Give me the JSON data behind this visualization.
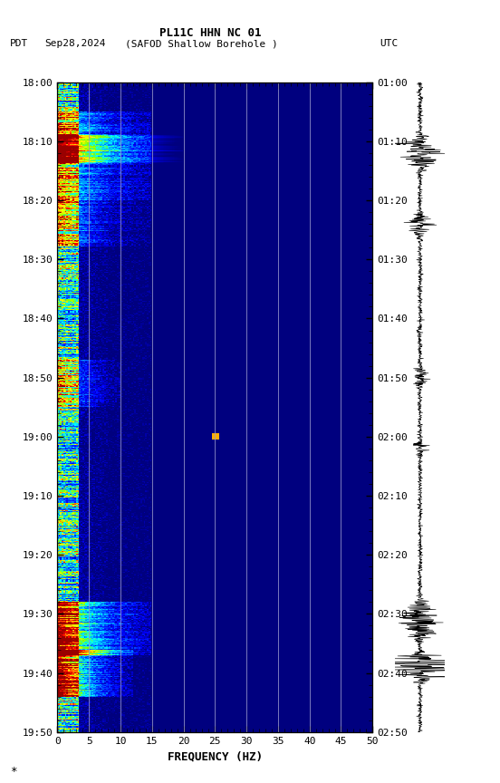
{
  "title_line1": "PL11C HHN NC 01",
  "title_line2_left": "PDT   Sep28,2024      (SAFOD Shallow Borehole )                    UTC",
  "xlabel": "FREQUENCY (HZ)",
  "freq_min": 0,
  "freq_max": 50,
  "time_start_pdt": "18:00",
  "time_end_pdt": "19:50",
  "time_start_utc": "01:00",
  "time_end_utc": "02:50",
  "left_yticks_labels": [
    "18:00",
    "18:10",
    "18:20",
    "18:30",
    "18:40",
    "18:50",
    "19:00",
    "19:10",
    "19:20",
    "19:30",
    "19:40",
    "19:50"
  ],
  "right_yticks_labels": [
    "01:00",
    "01:10",
    "01:20",
    "01:30",
    "01:40",
    "01:50",
    "02:00",
    "02:10",
    "02:20",
    "02:30",
    "02:40",
    "02:50"
  ],
  "xticks": [
    0,
    5,
    10,
    15,
    20,
    25,
    30,
    35,
    40,
    45,
    50
  ],
  "grid_color": "#9999cc",
  "background_color": "#ffffff",
  "spectrogram_bg": "#000080",
  "font_family": "monospace"
}
